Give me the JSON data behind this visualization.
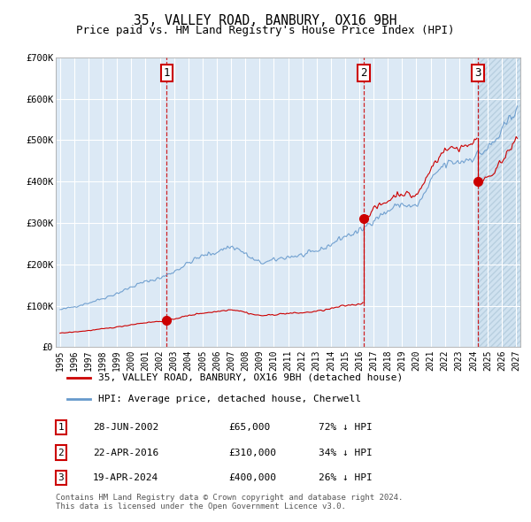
{
  "title": "35, VALLEY ROAD, BANBURY, OX16 9BH",
  "subtitle": "Price paid vs. HM Land Registry's House Price Index (HPI)",
  "title_fontsize": 10.5,
  "subtitle_fontsize": 9,
  "ylim": [
    0,
    700000
  ],
  "yticks": [
    0,
    100000,
    200000,
    300000,
    400000,
    500000,
    600000,
    700000
  ],
  "ytick_labels": [
    "£0",
    "£100K",
    "£200K",
    "£300K",
    "£400K",
    "£500K",
    "£600K",
    "£700K"
  ],
  "xlim_start": 1994.7,
  "xlim_end": 2027.3,
  "xtick_years": [
    1995,
    1996,
    1997,
    1998,
    1999,
    2000,
    2001,
    2002,
    2003,
    2004,
    2005,
    2006,
    2007,
    2008,
    2009,
    2010,
    2011,
    2012,
    2013,
    2014,
    2015,
    2016,
    2017,
    2018,
    2019,
    2020,
    2021,
    2022,
    2023,
    2024,
    2025,
    2026,
    2027
  ],
  "bg_color": "#dce9f5",
  "hatch_start": 2024.35,
  "sale_dates": [
    2002.487,
    2016.306,
    2024.302
  ],
  "sale_prices": [
    65000,
    310000,
    400000
  ],
  "sale_labels": [
    "1",
    "2",
    "3"
  ],
  "sale_vline_color": "#cc0000",
  "sale_marker_color": "#cc0000",
  "legend_line1": "35, VALLEY ROAD, BANBURY, OX16 9BH (detached house)",
  "legend_line2": "HPI: Average price, detached house, Cherwell",
  "legend_line1_color": "#cc0000",
  "legend_line2_color": "#6699cc",
  "table_entries": [
    {
      "num": "1",
      "date": "28-JUN-2002",
      "price": "£65,000",
      "hpi": "72% ↓ HPI"
    },
    {
      "num": "2",
      "date": "22-APR-2016",
      "price": "£310,000",
      "hpi": "34% ↓ HPI"
    },
    {
      "num": "3",
      "date": "19-APR-2024",
      "price": "£400,000",
      "hpi": "26% ↓ HPI"
    }
  ],
  "footnote": "Contains HM Land Registry data © Crown copyright and database right 2024.\nThis data is licensed under the Open Government Licence v3.0.",
  "hpi_annual_years": [
    1995,
    1996,
    1997,
    1998,
    1999,
    2000,
    2001,
    2002,
    2003,
    2004,
    2005,
    2006,
    2007,
    2008,
    2009,
    2010,
    2011,
    2012,
    2013,
    2014,
    2015,
    2016,
    2017,
    2018,
    2019,
    2020,
    2021,
    2022,
    2023,
    2024,
    2025,
    2026,
    2027
  ],
  "hpi_annual_values": [
    90000,
    98000,
    107000,
    118000,
    130000,
    145000,
    158000,
    167000,
    183000,
    203000,
    220000,
    230000,
    242000,
    225000,
    205000,
    210000,
    218000,
    222000,
    232000,
    248000,
    268000,
    280000,
    308000,
    328000,
    345000,
    342000,
    398000,
    440000,
    448000,
    460000,
    480000,
    520000,
    580000
  ]
}
